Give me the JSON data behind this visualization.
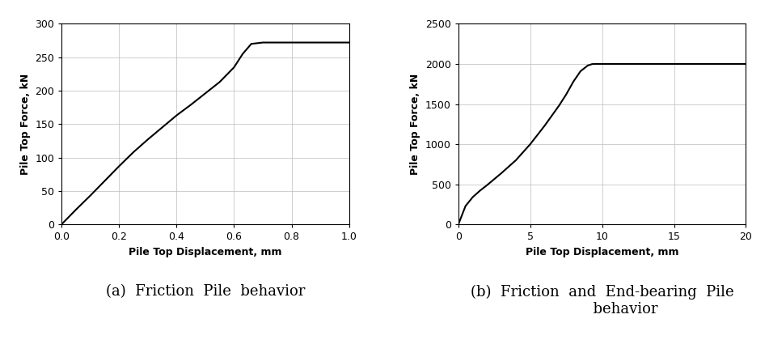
{
  "plot_a": {
    "title": "(a)  Friction  Pile  behavior",
    "xlabel": "Pile Top Displacement, mm",
    "ylabel": "Pile Top Force, kN",
    "xlim": [
      0,
      1
    ],
    "ylim": [
      0,
      300
    ],
    "xticks": [
      0,
      0.2,
      0.4,
      0.6,
      0.8,
      1.0
    ],
    "yticks": [
      0,
      50,
      100,
      150,
      200,
      250,
      300
    ],
    "curve_x": [
      0,
      0.05,
      0.1,
      0.15,
      0.2,
      0.25,
      0.3,
      0.35,
      0.4,
      0.45,
      0.5,
      0.55,
      0.6,
      0.63,
      0.66,
      0.7,
      0.8,
      1.0
    ],
    "curve_y": [
      0,
      22,
      43,
      65,
      87,
      108,
      127,
      145,
      163,
      179,
      196,
      213,
      235,
      255,
      270,
      272,
      272,
      272
    ],
    "line_color": "#000000",
    "line_width": 1.5
  },
  "plot_b": {
    "title": "(b)  Friction  and  End-bearing  Pile\n          behavior",
    "xlabel": "Pile Top Displacement, mm",
    "ylabel": "Pile Top Force, kN",
    "xlim": [
      0,
      20
    ],
    "ylim": [
      0,
      2500
    ],
    "xticks": [
      0,
      5,
      10,
      15,
      20
    ],
    "yticks": [
      0,
      500,
      1000,
      1500,
      2000,
      2500
    ],
    "curve_x": [
      0,
      0.5,
      1.0,
      1.5,
      2.0,
      3.0,
      4.0,
      5.0,
      6.0,
      7.0,
      7.5,
      8.0,
      8.5,
      9.0,
      9.3,
      9.6,
      10.0,
      15.0,
      20.0
    ],
    "curve_y": [
      0,
      230,
      340,
      420,
      490,
      640,
      800,
      1000,
      1230,
      1480,
      1620,
      1780,
      1910,
      1980,
      1998,
      2000,
      2000,
      2000,
      2000
    ],
    "line_color": "#000000",
    "line_width": 1.5
  },
  "background_color": "#ffffff",
  "grid_color": "#bbbbbb",
  "grid_alpha": 1.0,
  "grid_linewidth": 0.5,
  "caption_fontsize": 13,
  "label_fontsize": 9,
  "tick_fontsize": 9
}
